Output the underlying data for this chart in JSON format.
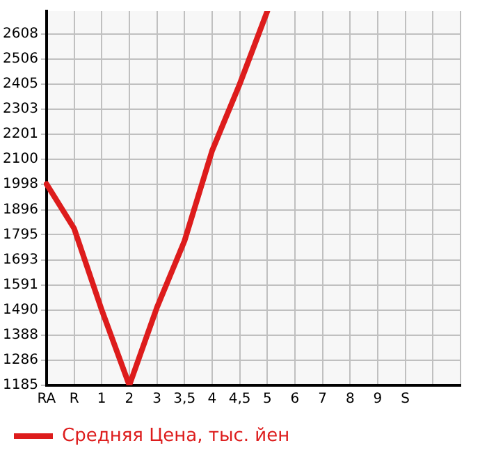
{
  "chart_data": {
    "type": "line",
    "categories": [
      "RA",
      "R",
      "1",
      "2",
      "3",
      "3,5",
      "4",
      "4,5",
      "5",
      "6",
      "7",
      "8",
      "9",
      "S",
      null,
      null
    ],
    "series": [
      {
        "name": "Средняя Цена, тыс. йен",
        "color": "#dd1c1c",
        "values": [
          2000,
          1820,
          1490,
          1185,
          1500,
          1770,
          2135,
          2405,
          2700,
          null,
          null,
          null,
          null,
          null,
          null,
          null
        ]
      }
    ],
    "ylim": [
      1185,
      2700
    ],
    "yticks": [
      1185,
      1286,
      1388,
      1490,
      1591,
      1693,
      1795,
      1896,
      1998,
      2100,
      2201,
      2303,
      2405,
      2506,
      2608
    ],
    "grid": true,
    "legend": "bottom left",
    "marker": "none",
    "line_style": "solid"
  }
}
